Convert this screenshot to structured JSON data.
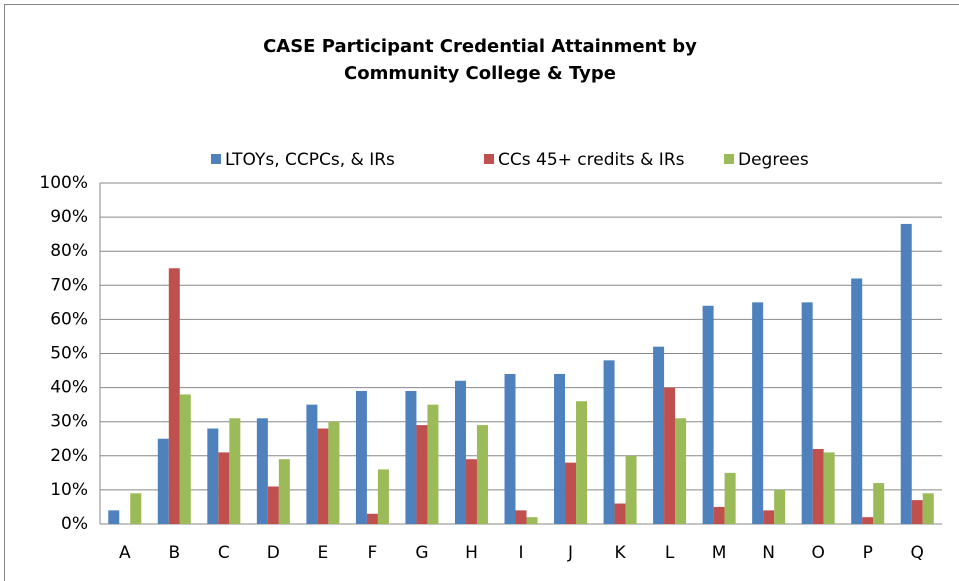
{
  "chart_data": {
    "type": "bar",
    "title": "CASE Participant Credential Attainment by Community College & Type",
    "categories": [
      "A",
      "B",
      "C",
      "D",
      "E",
      "F",
      "G",
      "H",
      "I",
      "J",
      "K",
      "L",
      "M",
      "N",
      "O",
      "P",
      "Q"
    ],
    "series": [
      {
        "name": "LTOYs, CCPCs, & IRs",
        "color": "#4f81bd",
        "values": [
          4,
          25,
          28,
          31,
          35,
          39,
          39,
          42,
          44,
          44,
          48,
          52,
          64,
          65,
          65,
          72,
          88
        ]
      },
      {
        "name": "CCs 45+ credits & IRs",
        "color": "#c0504d",
        "values": [
          0,
          75,
          21,
          11,
          28,
          3,
          29,
          19,
          4,
          18,
          6,
          40,
          5,
          4,
          22,
          2,
          7
        ]
      },
      {
        "name": "Degrees",
        "color": "#9bbb59",
        "values": [
          9,
          38,
          31,
          19,
          30,
          16,
          35,
          29,
          2,
          36,
          20,
          31,
          15,
          10,
          21,
          12,
          9
        ]
      }
    ],
    "ylim": [
      0,
      100
    ],
    "yticks": [
      {
        "value": 0,
        "label": "0%"
      },
      {
        "value": 10,
        "label": "10%"
      },
      {
        "value": 20,
        "label": "20%"
      },
      {
        "value": 30,
        "label": "30%"
      },
      {
        "value": 40,
        "label": "40%"
      },
      {
        "value": 50,
        "label": "50%"
      },
      {
        "value": 60,
        "label": "60%"
      },
      {
        "value": 70,
        "label": "70%"
      },
      {
        "value": 80,
        "label": "80%"
      },
      {
        "value": 90,
        "label": "90%"
      },
      {
        "value": 100,
        "label": "100%"
      }
    ],
    "grid": true,
    "legend": "top"
  }
}
